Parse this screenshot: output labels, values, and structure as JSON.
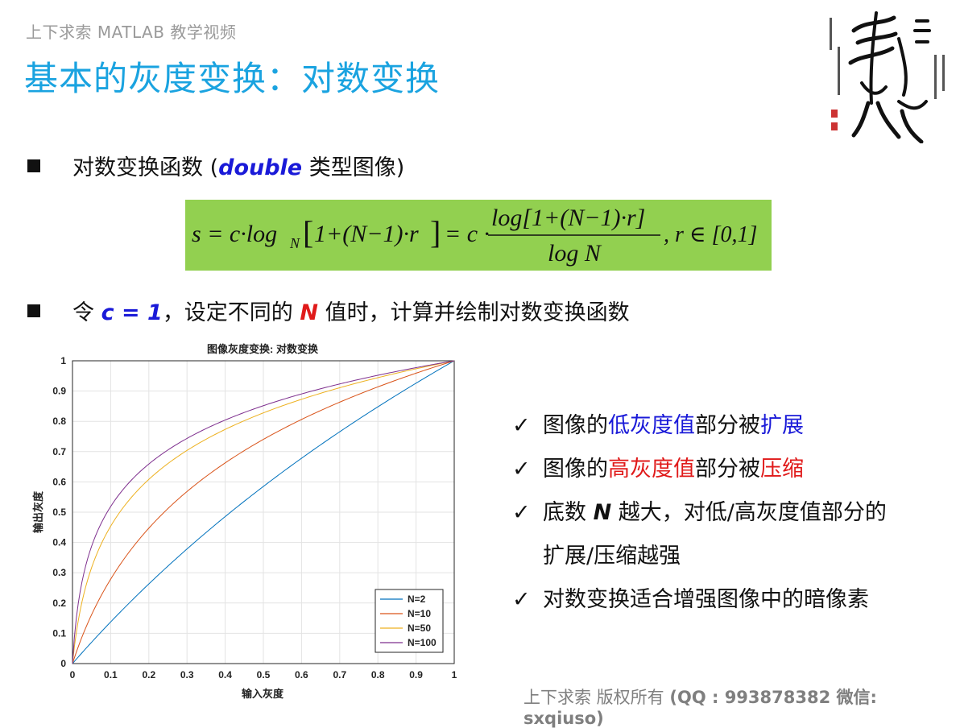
{
  "header": {
    "brand": "上下求索 MATLAB 教学视频"
  },
  "title": "基本的灰度变换：对数变换",
  "bullets": {
    "first": {
      "text_before": "对数变换函数 (",
      "keyword": "double",
      "text_after": " 类型图像)"
    },
    "second": {
      "prefix": "令 ",
      "c_eq": "c = 1",
      "mid": "，设定不同的 ",
      "n": "N",
      "suffix": " 值时，计算并绘制对数变换函数"
    }
  },
  "formula": {
    "background": "#92d050",
    "lhs": "s = c·log",
    "sub_n": "N",
    "bracket_content": "1+(N−1)·r",
    "eq2": "= c ·",
    "numerator": "log[1+(N−1)·r]",
    "denominator": "log N",
    "domain": ", r ∈ [0,1]"
  },
  "chart_data": {
    "type": "line",
    "title": "图像灰度变换: 对数变换",
    "xlabel": "输入灰度",
    "ylabel": "输出灰度",
    "xlim": [
      0,
      1
    ],
    "ylim": [
      0,
      1
    ],
    "xticks": [
      "0",
      "0.1",
      "0.2",
      "0.3",
      "0.4",
      "0.5",
      "0.6",
      "0.7",
      "0.8",
      "0.9",
      "1"
    ],
    "yticks": [
      "0",
      "0.1",
      "0.2",
      "0.3",
      "0.4",
      "0.5",
      "0.6",
      "0.7",
      "0.8",
      "0.9",
      "1"
    ],
    "grid": true,
    "legend_position": "bottom-right",
    "formula": "y = log(1+(N-1)x)/log(N)",
    "series": [
      {
        "name": "N=2",
        "N": 2,
        "color": "#0072bd"
      },
      {
        "name": "N=10",
        "N": 10,
        "color": "#d95319"
      },
      {
        "name": "N=50",
        "N": 50,
        "color": "#edb120"
      },
      {
        "name": "N=100",
        "N": 100,
        "color": "#7e2f8e"
      }
    ]
  },
  "checks": {
    "items": [
      {
        "a": "图像的",
        "b": "低灰度值",
        "c": "部分被",
        "d": "扩展"
      },
      {
        "a": "图像的",
        "b": "高灰度值",
        "c": "部分被",
        "d": "压缩"
      }
    ],
    "third_a": "底数 ",
    "third_n": "N",
    "third_b": " 越大，对低/高灰度值部分的",
    "third_cont": "扩展/压缩越强",
    "fourth": "对数变换适合增强图像中的暗像素",
    "tick": "✓"
  },
  "footer": {
    "text": "上下求索 版权所有",
    "qq": "(QQ : 993878382   微信: sxqiuso)"
  }
}
